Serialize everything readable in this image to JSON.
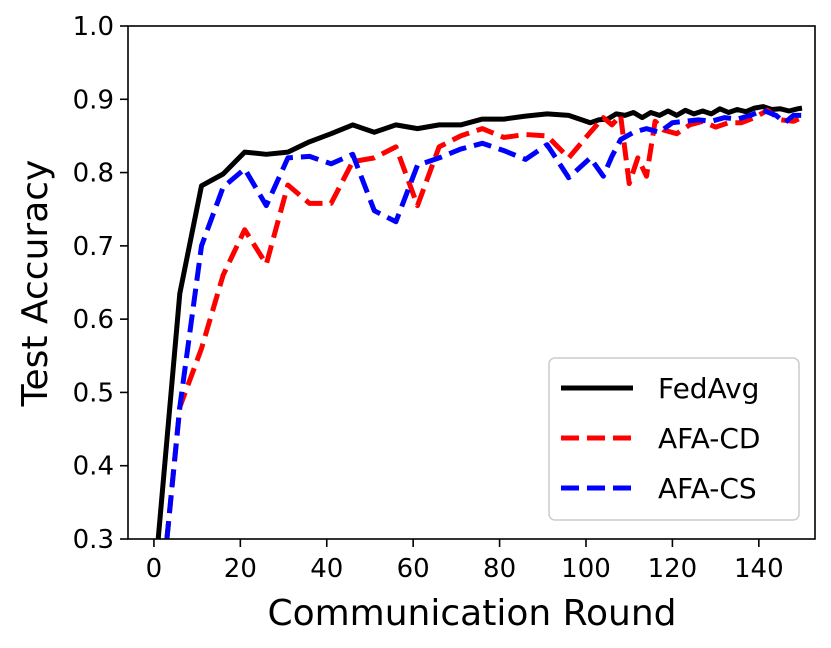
{
  "chart_data": {
    "type": "line",
    "xlabel": "Communication Round",
    "ylabel": "Test Accuracy",
    "xlim": [
      -6,
      153
    ],
    "ylim": [
      0.3,
      1.0
    ],
    "xticks": [
      0,
      20,
      40,
      60,
      80,
      100,
      120,
      140
    ],
    "yticks": [
      0.3,
      0.4,
      0.5,
      0.6,
      0.7,
      0.8,
      0.9,
      1.0
    ],
    "ytick_labels": [
      "0.3",
      "0.4",
      "0.5",
      "0.6",
      "0.7",
      "0.8",
      "0.9",
      "1.0"
    ],
    "grid": false,
    "legend_position": "lower-right",
    "series": [
      {
        "name": "FedAvg",
        "color": "#000000",
        "style": "solid",
        "x": [
          1,
          6,
          11,
          16,
          21,
          26,
          31,
          36,
          41,
          46,
          51,
          56,
          61,
          66,
          71,
          76,
          81,
          86,
          91,
          96,
          101,
          103,
          105,
          107,
          109,
          111,
          113,
          115,
          117,
          119,
          121,
          123,
          125,
          127,
          129,
          131,
          133,
          135,
          137,
          139,
          141,
          143,
          145,
          147,
          149,
          150
        ],
        "y": [
          0.3,
          0.635,
          0.782,
          0.798,
          0.828,
          0.825,
          0.828,
          0.842,
          0.853,
          0.865,
          0.855,
          0.865,
          0.86,
          0.865,
          0.865,
          0.873,
          0.873,
          0.877,
          0.88,
          0.878,
          0.868,
          0.872,
          0.873,
          0.88,
          0.878,
          0.882,
          0.875,
          0.882,
          0.878,
          0.884,
          0.878,
          0.885,
          0.88,
          0.884,
          0.88,
          0.887,
          0.882,
          0.886,
          0.883,
          0.888,
          0.89,
          0.886,
          0.887,
          0.884,
          0.887,
          0.888
        ]
      },
      {
        "name": "AFA-CD",
        "color": "#ff0000",
        "style": "dashed",
        "x": [
          3,
          6,
          11,
          16,
          21,
          26,
          31,
          36,
          41,
          46,
          51,
          56,
          61,
          66,
          71,
          76,
          81,
          86,
          91,
          96,
          101,
          104,
          106,
          108,
          110,
          112,
          114,
          116,
          118,
          121,
          124,
          127,
          130,
          133,
          136,
          139,
          142,
          145,
          148,
          150
        ],
        "y": [
          0.3,
          0.48,
          0.56,
          0.66,
          0.722,
          0.675,
          0.783,
          0.758,
          0.758,
          0.815,
          0.82,
          0.835,
          0.755,
          0.835,
          0.85,
          0.86,
          0.848,
          0.852,
          0.85,
          0.82,
          0.855,
          0.875,
          0.865,
          0.878,
          0.785,
          0.82,
          0.795,
          0.87,
          0.858,
          0.853,
          0.865,
          0.87,
          0.862,
          0.868,
          0.868,
          0.875,
          0.885,
          0.872,
          0.87,
          0.875
        ]
      },
      {
        "name": "AFA-CS",
        "color": "#0000ff",
        "style": "dashed",
        "x": [
          3,
          6,
          11,
          16,
          21,
          26,
          31,
          36,
          41,
          46,
          51,
          56,
          61,
          66,
          71,
          76,
          81,
          86,
          91,
          96,
          101,
          104,
          106,
          108,
          111,
          114,
          117,
          120,
          123,
          126,
          129,
          132,
          135,
          138,
          141,
          144,
          146,
          148,
          150
        ],
        "y": [
          0.3,
          0.48,
          0.7,
          0.78,
          0.805,
          0.755,
          0.82,
          0.822,
          0.812,
          0.825,
          0.748,
          0.733,
          0.81,
          0.82,
          0.832,
          0.84,
          0.83,
          0.818,
          0.838,
          0.793,
          0.82,
          0.795,
          0.822,
          0.845,
          0.855,
          0.86,
          0.855,
          0.868,
          0.87,
          0.872,
          0.87,
          0.875,
          0.873,
          0.878,
          0.885,
          0.878,
          0.868,
          0.878,
          0.878
        ]
      }
    ]
  }
}
